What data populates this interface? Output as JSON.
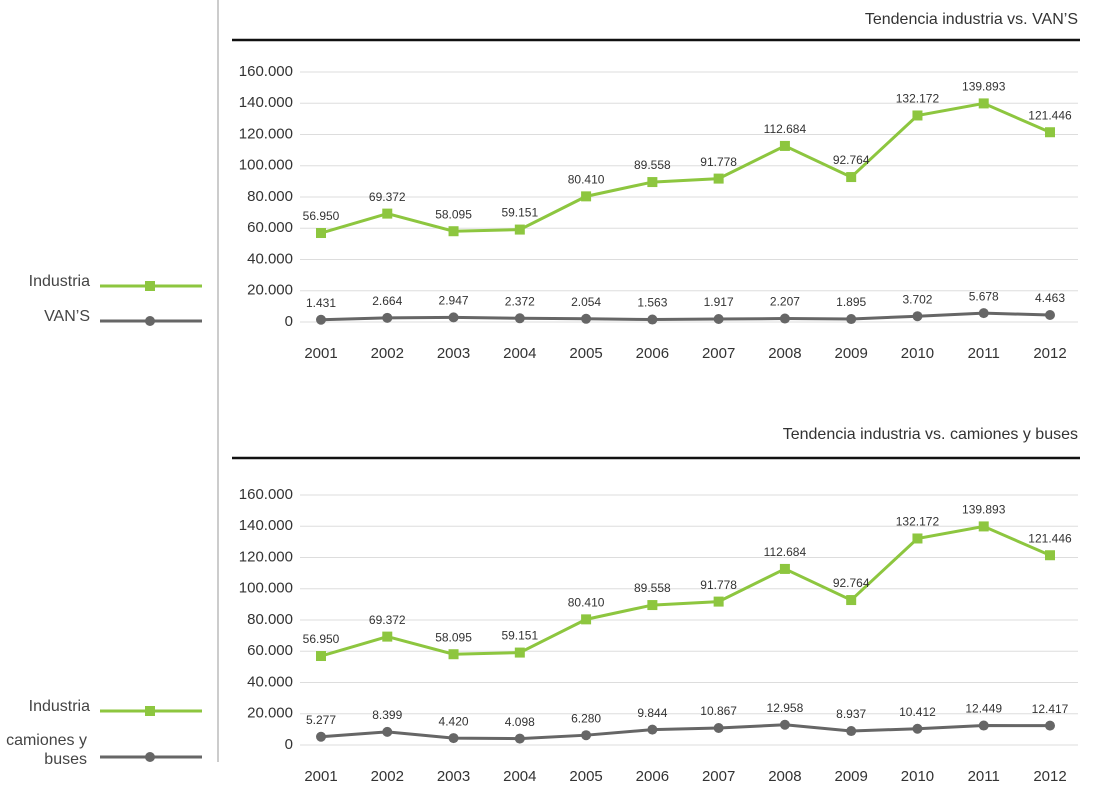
{
  "chart_data": [
    {
      "type": "line",
      "title": "Tendencia industria vs. VAN’S",
      "categories": [
        "2001",
        "2002",
        "2003",
        "2004",
        "2005",
        "2006",
        "2007",
        "2008",
        "2009",
        "2010",
        "2011",
        "2012"
      ],
      "series": [
        {
          "name": "Industria",
          "color": "#8dc63f",
          "marker": "square",
          "values": [
            56950,
            69372,
            58095,
            59151,
            80410,
            89558,
            91778,
            112684,
            92764,
            132172,
            139893,
            121446
          ],
          "value_labels": [
            "56.950",
            "69.372",
            "58.095",
            "59.151",
            "80.410",
            "89.558",
            "91.778",
            "112.684",
            "92.764",
            "132.172",
            "139.893",
            "121.446"
          ]
        },
        {
          "name": "VAN’S",
          "color": "#666666",
          "marker": "circle",
          "values": [
            1431,
            2664,
            2947,
            2372,
            2054,
            1563,
            1917,
            2207,
            1895,
            3702,
            5678,
            4463
          ],
          "value_labels": [
            "1.431",
            "2.664",
            "2.947",
            "2.372",
            "2.054",
            "1.563",
            "1.917",
            "2.207",
            "1.895",
            "3.702",
            "5.678",
            "4.463"
          ]
        }
      ],
      "ylim": [
        0,
        160000
      ],
      "yticks": [
        0,
        {
          "value": 20000,
          "label": "20.000"
        },
        {
          "value": 40000,
          "label": "40.000"
        },
        {
          "value": 60000,
          "label": "60.000"
        },
        {
          "value": 80000,
          "label": "80.000"
        },
        {
          "value": 100000,
          "label": "100.000"
        },
        {
          "value": 120000,
          "label": "120.000"
        },
        {
          "value": 140000,
          "label": "140.000"
        },
        {
          "value": 160000,
          "label": "160.000"
        }
      ],
      "grid": true,
      "legend": "left"
    },
    {
      "type": "line",
      "title": "Tendencia industria vs. camiones y buses",
      "categories": [
        "2001",
        "2002",
        "2003",
        "2004",
        "2005",
        "2006",
        "2007",
        "2008",
        "2009",
        "2010",
        "2011",
        "2012"
      ],
      "series": [
        {
          "name": "Industria",
          "color": "#8dc63f",
          "marker": "square",
          "values": [
            56950,
            69372,
            58095,
            59151,
            80410,
            89558,
            91778,
            112684,
            92764,
            132172,
            139893,
            121446
          ],
          "value_labels": [
            "56.950",
            "69.372",
            "58.095",
            "59.151",
            "80.410",
            "89.558",
            "91.778",
            "112.684",
            "92.764",
            "132.172",
            "139.893",
            "121.446"
          ]
        },
        {
          "name": "camiones y buses",
          "color": "#666666",
          "marker": "circle",
          "values": [
            5277,
            8399,
            4420,
            4098,
            6280,
            9844,
            10867,
            12958,
            8937,
            10412,
            12449,
            12417
          ],
          "value_labels": [
            "5.277",
            "8.399",
            "4.420",
            "4.098",
            "6.280",
            "9.844",
            "10.867",
            "12.958",
            "8.937",
            "10.412",
            "12.449",
            "12.417"
          ]
        }
      ],
      "ylim": [
        0,
        160000
      ],
      "yticks": [
        0,
        {
          "value": 20000,
          "label": "20.000"
        },
        {
          "value": 40000,
          "label": "40.000"
        },
        {
          "value": 60000,
          "label": "60.000"
        },
        {
          "value": 80000,
          "label": "80.000"
        },
        {
          "value": 100000,
          "label": "100.000"
        },
        {
          "value": 120000,
          "label": "120.000"
        },
        {
          "value": 140000,
          "label": "140.000"
        },
        {
          "value": 160000,
          "label": "160.000"
        }
      ],
      "grid": true,
      "legend": "left"
    }
  ]
}
